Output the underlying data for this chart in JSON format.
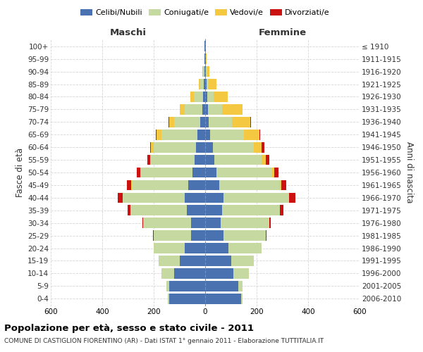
{
  "age_groups": [
    "0-4",
    "5-9",
    "10-14",
    "15-19",
    "20-24",
    "25-29",
    "30-34",
    "35-39",
    "40-44",
    "45-49",
    "50-54",
    "55-59",
    "60-64",
    "65-69",
    "70-74",
    "75-79",
    "80-84",
    "85-89",
    "90-94",
    "95-99",
    "100+"
  ],
  "birth_years": [
    "2006-2010",
    "2001-2005",
    "1996-2000",
    "1991-1995",
    "1986-1990",
    "1981-1985",
    "1976-1980",
    "1971-1975",
    "1966-1970",
    "1961-1965",
    "1956-1960",
    "1951-1955",
    "1946-1950",
    "1941-1945",
    "1936-1940",
    "1931-1935",
    "1926-1930",
    "1921-1925",
    "1916-1920",
    "1911-1915",
    "≤ 1910"
  ],
  "males": {
    "celibi": [
      140,
      140,
      120,
      100,
      80,
      55,
      55,
      70,
      80,
      65,
      50,
      40,
      35,
      30,
      20,
      10,
      8,
      5,
      3,
      2,
      2
    ],
    "coniugati": [
      5,
      10,
      50,
      80,
      120,
      145,
      185,
      220,
      240,
      220,
      200,
      170,
      165,
      140,
      100,
      70,
      35,
      15,
      5,
      1,
      0
    ],
    "vedovi": [
      0,
      0,
      0,
      0,
      0,
      0,
      0,
      0,
      1,
      2,
      3,
      5,
      10,
      20,
      20,
      20,
      15,
      5,
      2,
      0,
      0
    ],
    "divorziati": [
      0,
      0,
      0,
      0,
      0,
      2,
      5,
      10,
      20,
      18,
      12,
      10,
      5,
      2,
      2,
      0,
      0,
      0,
      0,
      0,
      0
    ]
  },
  "females": {
    "nubili": [
      140,
      130,
      110,
      100,
      90,
      70,
      60,
      65,
      70,
      55,
      45,
      35,
      30,
      20,
      15,
      10,
      8,
      5,
      3,
      2,
      2
    ],
    "coniugate": [
      5,
      15,
      60,
      90,
      130,
      165,
      190,
      225,
      255,
      235,
      215,
      185,
      160,
      130,
      90,
      55,
      25,
      10,
      5,
      1,
      0
    ],
    "vedove": [
      0,
      0,
      0,
      0,
      0,
      0,
      0,
      1,
      2,
      5,
      8,
      15,
      30,
      60,
      70,
      80,
      55,
      30,
      8,
      2,
      0
    ],
    "divorziate": [
      0,
      0,
      0,
      0,
      0,
      2,
      5,
      12,
      25,
      20,
      18,
      15,
      10,
      5,
      2,
      0,
      0,
      0,
      0,
      0,
      0
    ]
  },
  "colors": {
    "celibi_nubili": "#4a72b0",
    "coniugati": "#c5d9a0",
    "vedovi": "#f5c842",
    "divorziati": "#cc1111"
  },
  "xlim": 600,
  "title": "Popolazione per età, sesso e stato civile - 2011",
  "subtitle": "COMUNE DI CASTIGLION FIORENTINO (AR) - Dati ISTAT 1° gennaio 2011 - Elaborazione TUTTITALIA.IT",
  "ylabel_left": "Maschi",
  "ylabel_right": "Femmine",
  "ylabel_mid": "Fasce di età",
  "ylabel_right2": "Anni di nascita",
  "xtick_labels": [
    "600",
    "400",
    "200",
    "0",
    "200",
    "400",
    "600"
  ],
  "xtick_vals": [
    -600,
    -400,
    -200,
    0,
    200,
    400,
    600
  ]
}
